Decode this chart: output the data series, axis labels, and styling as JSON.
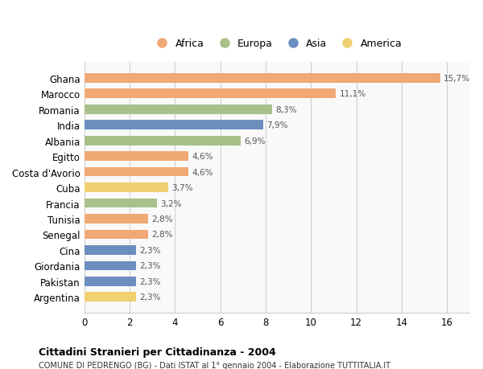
{
  "categories": [
    "Ghana",
    "Marocco",
    "Romania",
    "India",
    "Albania",
    "Egitto",
    "Costa d'Avorio",
    "Cuba",
    "Francia",
    "Tunisia",
    "Senegal",
    "Cina",
    "Giordania",
    "Pakistan",
    "Argentina"
  ],
  "values": [
    15.7,
    11.1,
    8.3,
    7.9,
    6.9,
    4.6,
    4.6,
    3.7,
    3.2,
    2.8,
    2.8,
    2.3,
    2.3,
    2.3,
    2.3
  ],
  "labels": [
    "15,7%",
    "11,1%",
    "8,3%",
    "7,9%",
    "6,9%",
    "4,6%",
    "4,6%",
    "3,7%",
    "3,2%",
    "2,8%",
    "2,8%",
    "2,3%",
    "2,3%",
    "2,3%",
    "2,3%"
  ],
  "continents": [
    "Africa",
    "Africa",
    "Europa",
    "Asia",
    "Europa",
    "Africa",
    "Africa",
    "America",
    "Europa",
    "Africa",
    "Africa",
    "Asia",
    "Asia",
    "Asia",
    "America"
  ],
  "colors": {
    "Africa": "#F0A875",
    "Europa": "#A8C08A",
    "Asia": "#6C8EBF",
    "America": "#F0D070"
  },
  "legend_order": [
    "Africa",
    "Europa",
    "Asia",
    "America"
  ],
  "title1": "Cittadini Stranieri per Cittadinanza - 2004",
  "title2": "COMUNE DI PEDRENGO (BG) - Dati ISTAT al 1° gennaio 2004 - Elaborazione TUTTITALIA.IT",
  "xlim": [
    0,
    17
  ],
  "xticks": [
    0,
    2,
    4,
    6,
    8,
    10,
    12,
    14,
    16
  ],
  "bg_color": "#f9f9f9",
  "bar_height": 0.6
}
